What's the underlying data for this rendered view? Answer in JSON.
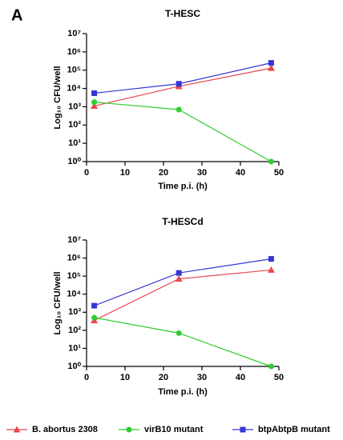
{
  "panel_label": "A",
  "legend": [
    {
      "name": "B. abortus 2308",
      "marker": "triangle"
    },
    {
      "name": "virB10 mutant",
      "marker": "circle"
    },
    {
      "name": "btpAbtpB mutant",
      "marker": "square"
    }
  ],
  "chart_data": [
    {
      "type": "line",
      "title": "T-HESC",
      "xlabel": "Time p.i. (h)",
      "ylabel": "Log₁₀ CFU/well",
      "x": [
        2,
        24,
        48
      ],
      "xlim": [
        0,
        50
      ],
      "xticks": [
        0,
        10,
        20,
        30,
        40,
        50
      ],
      "ylim": [
        1,
        10000000
      ],
      "yscale": "log",
      "yticks": [
        {
          "value": 1,
          "label": "10⁰"
        },
        {
          "value": 10,
          "label": "10¹"
        },
        {
          "value": 100,
          "label": "10²"
        },
        {
          "value": 1000,
          "label": "10³"
        },
        {
          "value": 10000,
          "label": "10⁴"
        },
        {
          "value": 100000,
          "label": "10⁵"
        },
        {
          "value": 1000000,
          "label": "10⁶"
        },
        {
          "value": 10000000,
          "label": "10⁷"
        }
      ],
      "series": [
        {
          "color": "#e8474f",
          "values": [
            1100,
            13000,
            130000
          ]
        },
        {
          "color": "#2ecc2e",
          "values": [
            1800,
            700,
            1
          ]
        },
        {
          "color": "#3535d6",
          "values": [
            5500,
            18000,
            250000
          ]
        }
      ]
    },
    {
      "type": "line",
      "title": "T-HESCd",
      "xlabel": "Time p.i. (h)",
      "ylabel": "Log₁₀ CFU/well",
      "x": [
        2,
        24,
        48
      ],
      "xlim": [
        0,
        50
      ],
      "xticks": [
        0,
        10,
        20,
        30,
        40,
        50
      ],
      "ylim": [
        1,
        10000000
      ],
      "yscale": "log",
      "yticks": [
        {
          "value": 1,
          "label": "10⁰"
        },
        {
          "value": 10,
          "label": "10¹"
        },
        {
          "value": 100,
          "label": "10²"
        },
        {
          "value": 1000,
          "label": "10³"
        },
        {
          "value": 10000,
          "label": "10⁴"
        },
        {
          "value": 100000,
          "label": "10⁵"
        },
        {
          "value": 1000000,
          "label": "10⁶"
        },
        {
          "value": 10000000,
          "label": "10⁷"
        }
      ],
      "series": [
        {
          "color": "#e8474f",
          "values": [
            350,
            70000,
            220000
          ]
        },
        {
          "color": "#2ecc2e",
          "values": [
            500,
            70,
            1
          ]
        },
        {
          "color": "#3535d6",
          "values": [
            2300,
            150000,
            900000
          ]
        }
      ]
    }
  ]
}
